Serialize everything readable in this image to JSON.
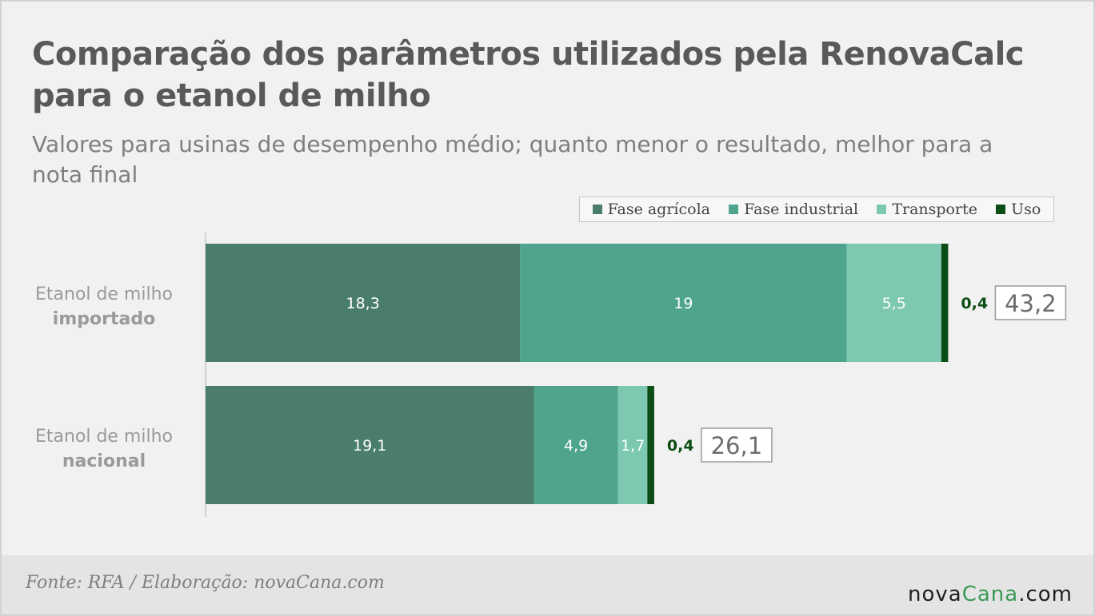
{
  "title": "Comparação dos parâmetros utilizados pela RenovaCalc para o etanol de milho",
  "subtitle": "Valores para usinas de desempenho médio; quanto menor o resultado, melhor para a nota final",
  "source": "Fonte: RFA / Elaboração: novaCana.com",
  "logo": {
    "part1": "nova",
    "part2": "Cana",
    "part3": ".com"
  },
  "colors": {
    "fase_agricola": "#4a7d6c",
    "fase_industrial": "#4ea48c",
    "transporte": "#7dc8b1",
    "uso": "#0b4d14"
  },
  "chart_data": {
    "type": "bar",
    "orientation": "horizontal",
    "stacked": true,
    "categories": [
      {
        "line1": "Etanol de milho",
        "line2": "importado"
      },
      {
        "line1": "Etanol de milho",
        "line2": "nacional"
      }
    ],
    "series": [
      {
        "name": "Fase agrícola",
        "values": [
          18.3,
          19.1
        ],
        "labels": [
          "18,3",
          "19,1"
        ],
        "color": "#4a7d6c"
      },
      {
        "name": "Fase industrial",
        "values": [
          19,
          4.9
        ],
        "labels": [
          "19",
          "4,9"
        ],
        "color": "#4ea48c"
      },
      {
        "name": "Transporte",
        "values": [
          5.5,
          1.7
        ],
        "labels": [
          "5,5",
          "1,7"
        ],
        "color": "#7dc8b1"
      },
      {
        "name": "Uso",
        "values": [
          0.4,
          0.4
        ],
        "labels": [
          "0,4",
          "0,4"
        ],
        "color": "#0b4d14"
      }
    ],
    "totals": [
      43.2,
      26.1
    ],
    "total_labels": [
      "43,2",
      "26,1"
    ],
    "xlim": [
      0,
      43.6
    ],
    "legend": "top-right",
    "grid": false
  }
}
